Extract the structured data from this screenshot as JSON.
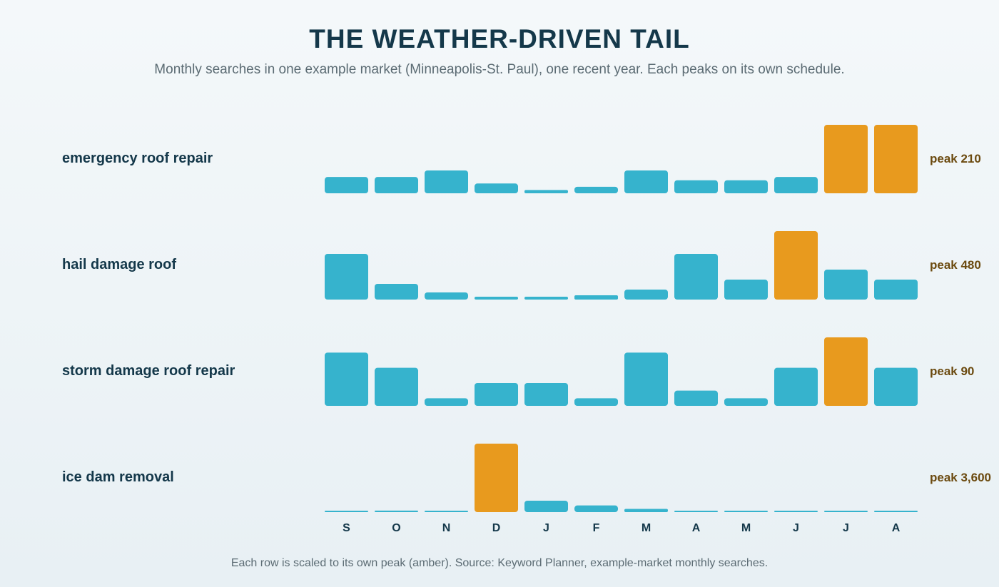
{
  "title": "THE WEATHER-DRIVEN TAIL",
  "subtitle": "Monthly searches in one example market (Minneapolis-St. Paul), one recent year. Each peaks on its own schedule.",
  "footnote": "Each row is scaled to its own peak (amber). Source: Keyword Planner, example-market monthly searches.",
  "colors": {
    "bar": "#36b3cd",
    "peak": "#e89a1e",
    "row_label": "#14384a",
    "peak_label": "#6b4a0f",
    "month_label": "#14384a"
  },
  "chart_data": {
    "type": "bar",
    "categories": [
      "S",
      "O",
      "N",
      "D",
      "J",
      "F",
      "M",
      "A",
      "M",
      "J",
      "J",
      "A"
    ],
    "scaling": "Each row is scaled to its own peak (amber).",
    "series": [
      {
        "name": "emergency roof repair",
        "peak_label": "peak 210",
        "peak": 210,
        "values": [
          50,
          50,
          70,
          30,
          10,
          20,
          70,
          40,
          40,
          50,
          210,
          210
        ]
      },
      {
        "name": "hail damage roof",
        "peak_label": "peak 480",
        "peak": 480,
        "values": [
          320,
          110,
          50,
          20,
          20,
          30,
          70,
          320,
          140,
          480,
          210,
          140
        ]
      },
      {
        "name": "storm damage roof repair",
        "peak_label": "peak 90",
        "peak": 90,
        "values": [
          70,
          50,
          10,
          30,
          30,
          10,
          70,
          20,
          10,
          50,
          90,
          50
        ]
      },
      {
        "name": "ice dam removal",
        "peak_label": "peak 3,600",
        "peak": 3600,
        "values": [
          20,
          80,
          20,
          3600,
          600,
          350,
          170,
          30,
          20,
          20,
          30,
          20
        ]
      }
    ]
  }
}
